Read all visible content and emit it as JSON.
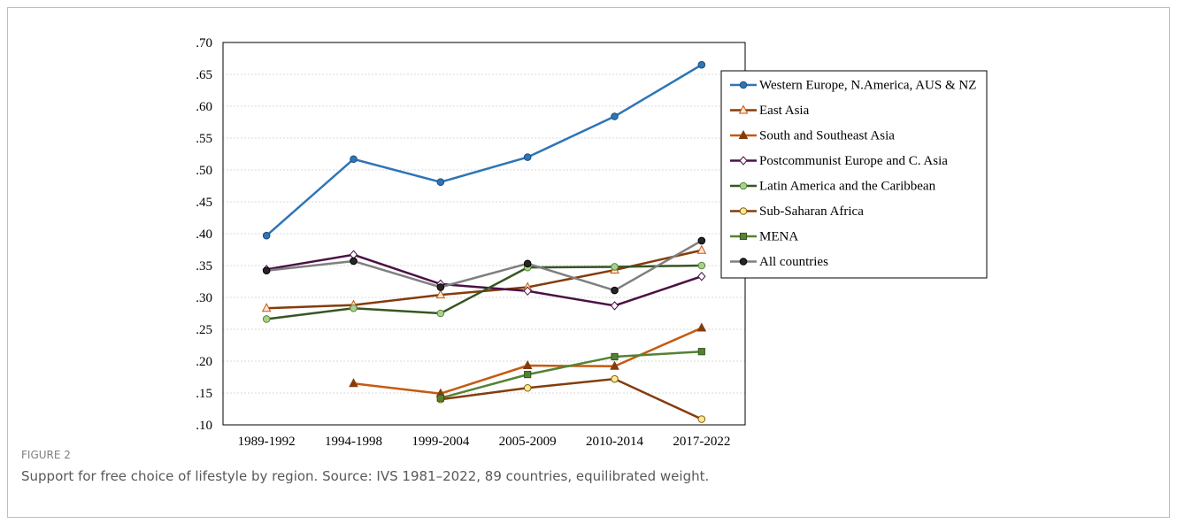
{
  "chart_data": {
    "type": "line",
    "figure_label": "FIGURE 2",
    "caption": "Support for free choice of lifestyle by region. Source: IVS 1981–2022, 89 countries, equilibrated weight.",
    "categories": [
      "1989-1992",
      "1994-1998",
      "1999-2004",
      "2005-2009",
      "2010-2014",
      "2017-2022"
    ],
    "ylim": [
      0.1,
      0.7
    ],
    "yticks": [
      {
        "value": 0.1,
        "label": ".10"
      },
      {
        "value": 0.15,
        "label": ".15"
      },
      {
        "value": 0.2,
        "label": ".20"
      },
      {
        "value": 0.25,
        "label": ".25"
      },
      {
        "value": 0.3,
        "label": ".30"
      },
      {
        "value": 0.35,
        "label": ".35"
      },
      {
        "value": 0.4,
        "label": ".40"
      },
      {
        "value": 0.45,
        "label": ".45"
      },
      {
        "value": 0.5,
        "label": ".50"
      },
      {
        "value": 0.55,
        "label": ".55"
      },
      {
        "value": 0.6,
        "label": ".60"
      },
      {
        "value": 0.65,
        "label": ".65"
      },
      {
        "value": 0.7,
        "label": ".70"
      }
    ],
    "grid": true,
    "legend": "right",
    "series": [
      {
        "name": "Western Europe, N.America, AUS & NZ",
        "color": "#2e75b6",
        "marker": "circle",
        "marker_fill": "#2e75b6",
        "marker_stroke": "#1f4e79",
        "values": [
          0.397,
          0.517,
          0.481,
          0.52,
          0.584,
          0.665
        ]
      },
      {
        "name": "East Asia",
        "color": "#843c0c",
        "marker": "triangle",
        "marker_fill": "#fbe5d6",
        "marker_stroke": "#c55a11",
        "values": [
          0.283,
          0.288,
          0.304,
          0.316,
          0.343,
          0.374
        ]
      },
      {
        "name": "South and Southeast Asia",
        "color": "#c55a11",
        "marker": "triangle",
        "marker_fill": "#843c0c",
        "marker_stroke": "#843c0c",
        "values": [
          null,
          0.165,
          0.149,
          0.193,
          0.192,
          0.252
        ]
      },
      {
        "name": "Postcommunist Europe and C. Asia",
        "color": "#4b1145",
        "marker": "diamond",
        "marker_fill": "#ffffff",
        "marker_stroke": "#4b1145",
        "values": [
          0.344,
          0.367,
          0.321,
          0.31,
          0.287,
          0.333
        ]
      },
      {
        "name": "Latin America and the Caribbean",
        "color": "#375623",
        "marker": "circle",
        "marker_fill": "#a9d18e",
        "marker_stroke": "#548235",
        "values": [
          0.266,
          0.283,
          0.275,
          0.347,
          0.348,
          0.35
        ]
      },
      {
        "name": "Sub-Saharan Africa",
        "color": "#843c0c",
        "marker": "circle",
        "marker_fill": "#ffe699",
        "marker_stroke": "#7f6000",
        "values": [
          null,
          null,
          0.14,
          0.158,
          0.172,
          0.109
        ]
      },
      {
        "name": "MENA",
        "color": "#548235",
        "marker": "square",
        "marker_fill": "#548235",
        "marker_stroke": "#375623",
        "values": [
          null,
          null,
          0.142,
          0.179,
          0.207,
          0.215
        ]
      },
      {
        "name": "All countries",
        "color": "#7f7f7f",
        "marker": "circle",
        "marker_fill": "#262626",
        "marker_stroke": "#000000",
        "values": [
          0.342,
          0.357,
          0.316,
          0.353,
          0.311,
          0.389
        ]
      }
    ]
  }
}
